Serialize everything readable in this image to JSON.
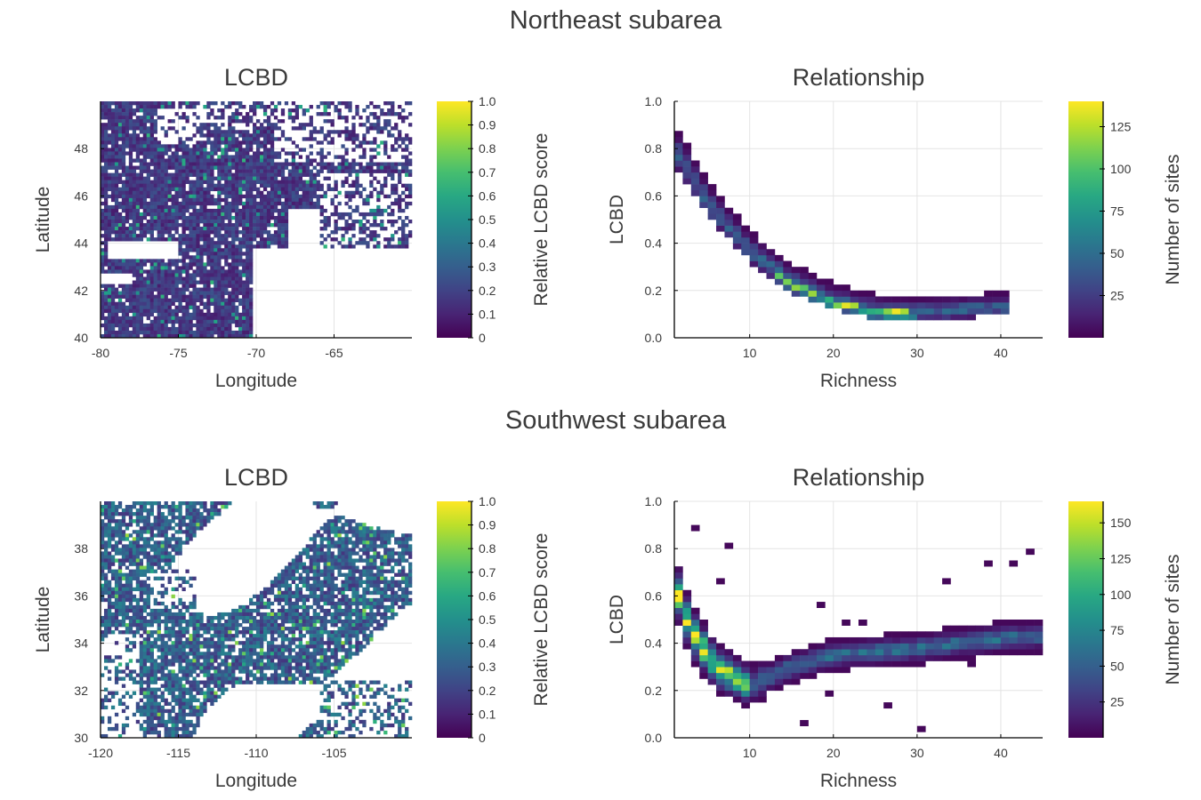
{
  "sections": [
    {
      "title": "Northeast subarea"
    },
    {
      "title": "Southwest subarea"
    }
  ],
  "chart_data": [
    {
      "type": "heatmap",
      "subarea": "Northeast subarea",
      "title": "LCBD",
      "xlabel": "Longitude",
      "ylabel": "Latitude",
      "xlim": [
        -80,
        -60
      ],
      "ylim": [
        40,
        50
      ],
      "xticks": [
        -80,
        -75,
        -70,
        -65
      ],
      "yticks": [
        40,
        42,
        44,
        46,
        48
      ],
      "colorbar": {
        "label": "Relative LCBD score",
        "min": 0,
        "max": 1,
        "ticks": [
          "0",
          "0.1",
          "0.2",
          "0.3",
          "0.4",
          "0.5",
          "0.6",
          "0.7",
          "0.8",
          "0.9",
          "1.0"
        ],
        "colormap": "viridis"
      },
      "values_summary": "mostly low relative LCBD scores (0.05-0.3) over land, with scattered higher values",
      "grid": true
    },
    {
      "type": "heatmap",
      "subarea": "Northeast subarea",
      "title": "Relationship",
      "xlabel": "Richness",
      "ylabel": "LCBD",
      "xlim": [
        1,
        45
      ],
      "ylim": [
        0,
        1
      ],
      "xticks": [
        10,
        20,
        30,
        40
      ],
      "yticks": [
        "0.0",
        "0.2",
        "0.4",
        "0.6",
        "0.8",
        "1.0"
      ],
      "colorbar": {
        "label": "Number of sites",
        "min": 0,
        "max": 140,
        "ticks": [
          25,
          50,
          75,
          100,
          125
        ],
        "colormap": "viridis"
      },
      "trend": {
        "richness": [
          1,
          5,
          10,
          15,
          20,
          25,
          30,
          35,
          40
        ],
        "lcbd": [
          0.8,
          0.57,
          0.37,
          0.24,
          0.16,
          0.12,
          0.11,
          0.12,
          0.13
        ]
      },
      "grid": true
    },
    {
      "type": "heatmap",
      "subarea": "Southwest subarea",
      "title": "LCBD",
      "xlabel": "Longitude",
      "ylabel": "Latitude",
      "xlim": [
        -120,
        -100
      ],
      "ylim": [
        30,
        40
      ],
      "xticks": [
        -120,
        -115,
        -110,
        -105
      ],
      "yticks": [
        30,
        32,
        34,
        36,
        38
      ],
      "colorbar": {
        "label": "Relative LCBD score",
        "min": 0,
        "max": 1,
        "ticks": [
          "0",
          "0.1",
          "0.2",
          "0.3",
          "0.4",
          "0.5",
          "0.6",
          "0.7",
          "0.8",
          "0.9",
          "1.0"
        ],
        "colormap": "viridis"
      },
      "values_summary": "patchy coverage with relative LCBD scores mostly 0.15-0.45 and scattered high values",
      "grid": true
    },
    {
      "type": "heatmap",
      "subarea": "Southwest subarea",
      "title": "Relationship",
      "xlabel": "Richness",
      "ylabel": "LCBD",
      "xlim": [
        1,
        45
      ],
      "ylim": [
        0,
        1
      ],
      "xticks": [
        10,
        20,
        30,
        40
      ],
      "yticks": [
        "0.0",
        "0.2",
        "0.4",
        "0.6",
        "0.8",
        "1.0"
      ],
      "colorbar": {
        "label": "Number of sites",
        "min": 0,
        "max": 165,
        "ticks": [
          25,
          50,
          75,
          100,
          125,
          150
        ],
        "colormap": "viridis"
      },
      "trend": {
        "richness": [
          1,
          3,
          6,
          10,
          15,
          20,
          30,
          40,
          44
        ],
        "lcbd": [
          0.65,
          0.45,
          0.3,
          0.22,
          0.3,
          0.35,
          0.38,
          0.42,
          0.43
        ]
      },
      "grid": true
    }
  ]
}
